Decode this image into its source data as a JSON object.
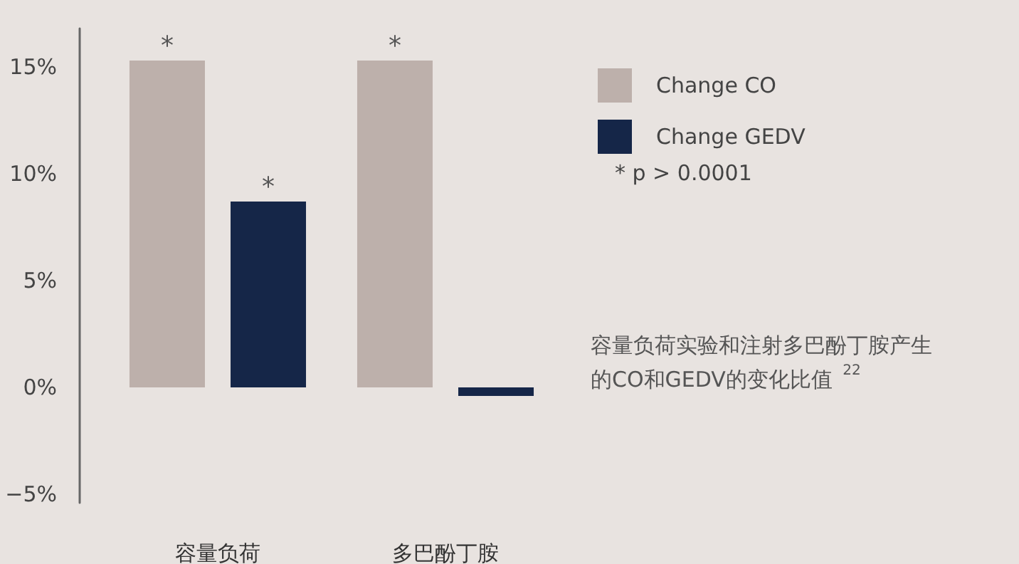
{
  "chart_data": {
    "type": "bar",
    "categories": [
      "容量负荷",
      "多巴酚丁胺"
    ],
    "series": [
      {
        "name": "Change CO",
        "color": "#bdb0ab",
        "values": [
          15.3,
          15.3
        ],
        "value_labels": [
          "*",
          "*"
        ]
      },
      {
        "name": "Change GEDV",
        "color": "#152648",
        "values": [
          8.7,
          -0.4
        ],
        "value_labels": [
          "*",
          null
        ]
      }
    ],
    "ylim": [
      -5.4,
      16.8
    ],
    "yticks": [
      {
        "value": -5,
        "label": "−5%"
      },
      {
        "value": 0,
        "label": "0%"
      },
      {
        "value": 5,
        "label": "5%"
      },
      {
        "value": 10,
        "label": "10%"
      },
      {
        "value": 15,
        "label": "15%"
      }
    ],
    "grid": false,
    "legend": "right",
    "annotations": [
      "* p > 0.0001",
      "容量负荷实验和注射多巴酚丁胺产生的CO和GEDV的变化比值 $^{22}$"
    ]
  }
}
